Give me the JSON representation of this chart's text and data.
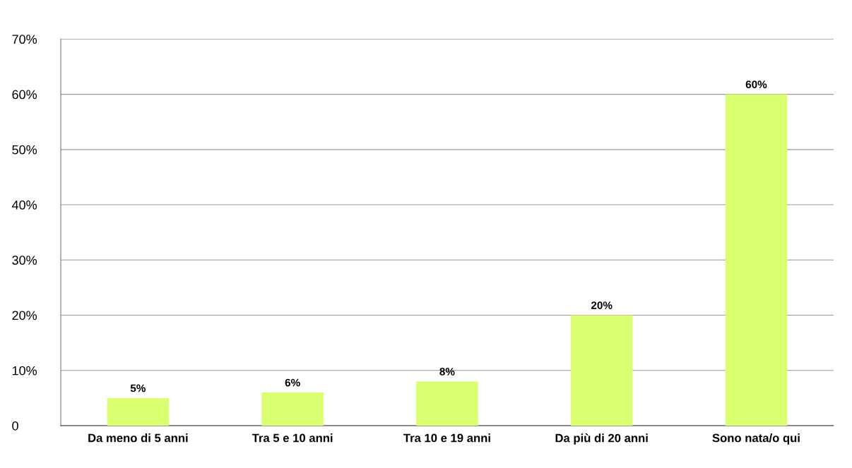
{
  "chart_data": {
    "type": "bar",
    "categories": [
      "Da meno di 5 anni",
      "Tra 5 e 10 anni",
      "Tra 10 e 19 anni",
      "Da più di 20 anni",
      "Sono nata/o qui"
    ],
    "values": [
      5,
      6,
      8,
      20,
      60
    ],
    "color": "#d9ff70",
    "ylim": [
      0,
      70
    ],
    "yticks": [
      {
        "value": 0,
        "label": "0"
      },
      {
        "value": 10,
        "label": "10%"
      },
      {
        "value": 20,
        "label": "20%"
      },
      {
        "value": 30,
        "label": "30%"
      },
      {
        "value": 40,
        "label": "40%"
      },
      {
        "value": 50,
        "label": "50%"
      },
      {
        "value": 60,
        "label": "60%"
      },
      {
        "value": 70,
        "label": "70%"
      }
    ],
    "value_labels": [
      "5%",
      "6%",
      "8%",
      "20%",
      "60%"
    ],
    "grid": "y",
    "legend": false
  }
}
